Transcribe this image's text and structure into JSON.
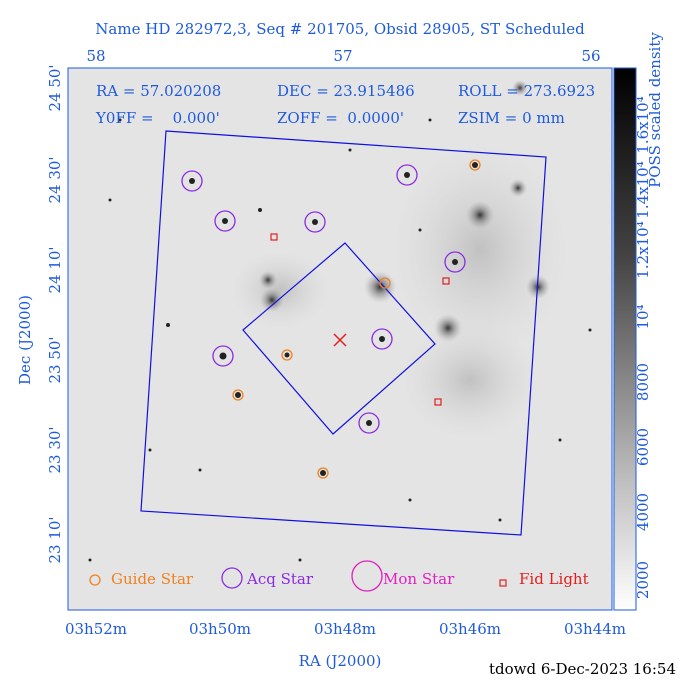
{
  "title": "Name HD 282972,3, Seq # 201705, Obsid 28905, ST Scheduled",
  "top_axis": {
    "ticks": [
      "58",
      "57",
      "56"
    ]
  },
  "left_axis": {
    "label": "Dec (J2000)",
    "ticks": [
      "24 50'",
      "24 30'",
      "24 10'",
      "23 50'",
      "23 30'",
      "23 10'"
    ]
  },
  "bottom_axis": {
    "label": "RA (J2000)",
    "ticks": [
      "03h52m",
      "03h50m",
      "03h48m",
      "03h46m",
      "03h44m"
    ]
  },
  "colorbar": {
    "label": "POSS scaled density",
    "ticks": [
      "2000",
      "4000",
      "6000",
      "8000",
      "10⁴",
      "1.2x10⁴",
      "1.4x10⁴",
      "1.6x10⁴"
    ]
  },
  "info": {
    "ra": "RA = 57.020208",
    "dec": "DEC = 23.915486",
    "roll": "ROLL = 273.6923",
    "yoff": "Y0FF =    0.000'",
    "zoff": "ZOFF =  0.0000'",
    "zsim": "ZSIM = 0 mm"
  },
  "legend": {
    "guide": "Guide Star",
    "acq": "Acq Star",
    "mon": "Mon Star",
    "fid": "Fid Light"
  },
  "footer": "tdowd  6-Dec-2023 16:54"
}
